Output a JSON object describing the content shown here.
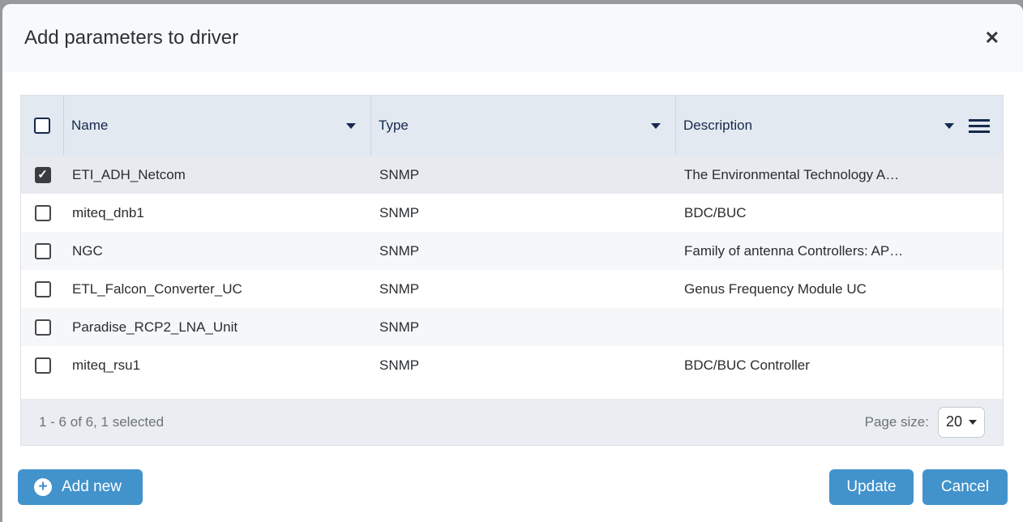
{
  "modal": {
    "title": "Add parameters to driver"
  },
  "icons": {
    "close": "✕",
    "check": "✓",
    "plus": "+"
  },
  "table": {
    "columns": [
      {
        "label": "Name"
      },
      {
        "label": "Type"
      },
      {
        "label": "Description"
      }
    ],
    "rows": [
      {
        "checked": true,
        "name": "ETI_ADH_Netcom",
        "type": "SNMP",
        "description": "The Environmental Technology A…"
      },
      {
        "checked": false,
        "name": "miteq_dnb1",
        "type": "SNMP",
        "description": "BDC/BUC"
      },
      {
        "checked": false,
        "name": "NGC",
        "type": "SNMP",
        "description": "Family of antenna Controllers: AP…"
      },
      {
        "checked": false,
        "name": "ETL_Falcon_Converter_UC",
        "type": "SNMP",
        "description": "Genus Frequency Module UC"
      },
      {
        "checked": false,
        "name": "Paradise_RCP2_LNA_Unit",
        "type": "SNMP",
        "description": ""
      },
      {
        "checked": false,
        "name": "miteq_rsu1",
        "type": "SNMP",
        "description": "BDC/BUC Controller"
      }
    ],
    "footer": {
      "summary": "1 - 6 of 6, 1 selected",
      "page_size_label": "Page size:",
      "page_size_value": "20"
    }
  },
  "buttons": {
    "add_new": "Add new",
    "update": "Update",
    "cancel": "Cancel"
  },
  "colors": {
    "accent_blue": "#4292cc",
    "header_bg": "#e2e9f0",
    "header_text": "#16294d",
    "selected_row_bg": "#e7ebf0",
    "footer_bg": "#eaedf1"
  }
}
